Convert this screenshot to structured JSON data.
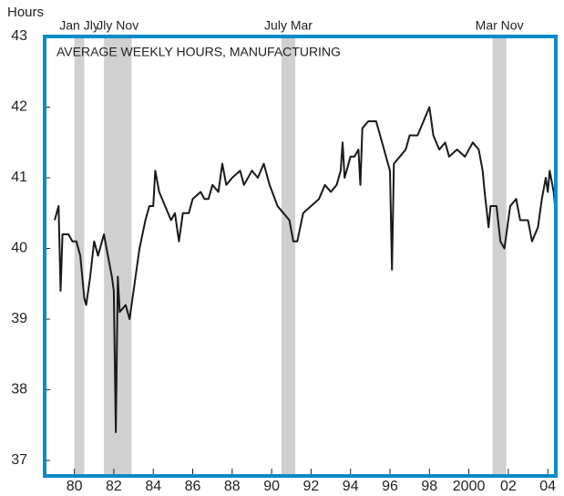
{
  "chart_data": {
    "type": "line",
    "title": "AVERAGE WEEKLY HOURS, MANUFACTURING",
    "y_label": "Hours",
    "color": "#1a1a1a",
    "frame_color": "#0a8bc9",
    "shade_color": "#d0d0d0",
    "xlim": [
      1978.4,
      2004.5
    ],
    "ylim": [
      37,
      43
    ],
    "yticks": [
      37,
      38,
      39,
      40,
      41,
      42,
      43
    ],
    "xticks": [
      {
        "value": 1980,
        "label": "80"
      },
      {
        "value": 1982,
        "label": "82"
      },
      {
        "value": 1984,
        "label": "84"
      },
      {
        "value": 1986,
        "label": "86"
      },
      {
        "value": 1988,
        "label": "88"
      },
      {
        "value": 1990,
        "label": "90"
      },
      {
        "value": 1992,
        "label": "92"
      },
      {
        "value": 1994,
        "label": "94"
      },
      {
        "value": 1996,
        "label": "96"
      },
      {
        "value": 1998,
        "label": "98"
      },
      {
        "value": 2000,
        "label": "2000"
      },
      {
        "value": 2002,
        "label": "02"
      },
      {
        "value": 2004,
        "label": "04"
      }
    ],
    "recessions": [
      {
        "start": 1980.0,
        "end": 1980.5,
        "label": "Jan Jly"
      },
      {
        "start": 1981.5,
        "end": 1982.9,
        "label": "Jly Nov"
      },
      {
        "start": 1990.5,
        "end": 1991.2,
        "label": "July Mar"
      },
      {
        "start": 2001.2,
        "end": 2001.9,
        "label": "Mar Nov"
      }
    ],
    "x": [
      1979.0,
      1979.2,
      1979.3,
      1979.4,
      1979.7,
      1979.9,
      1980.1,
      1980.3,
      1980.5,
      1980.6,
      1980.8,
      1981.0,
      1981.2,
      1981.5,
      1981.7,
      1981.9,
      1982.0,
      1982.1,
      1982.2,
      1982.3,
      1982.6,
      1982.8,
      1983.0,
      1983.3,
      1983.6,
      1983.8,
      1984.0,
      1984.1,
      1984.3,
      1984.6,
      1984.9,
      1985.1,
      1985.3,
      1985.5,
      1985.8,
      1986.0,
      1986.4,
      1986.6,
      1986.8,
      1987.0,
      1987.3,
      1987.5,
      1987.7,
      1988.0,
      1988.4,
      1988.6,
      1989.0,
      1989.3,
      1989.6,
      1989.9,
      1990.3,
      1990.6,
      1990.9,
      1991.1,
      1991.3,
      1991.6,
      1992.0,
      1992.4,
      1992.7,
      1993.0,
      1993.3,
      1993.5,
      1993.6,
      1993.7,
      1994.0,
      1994.2,
      1994.4,
      1994.5,
      1994.6,
      1994.9,
      1995.3,
      1995.5,
      1995.9,
      1996.0,
      1996.1,
      1996.2,
      1996.5,
      1996.8,
      1997.0,
      1997.4,
      1997.7,
      1998.0,
      1998.2,
      1998.5,
      1998.8,
      1999.0,
      1999.4,
      1999.8,
      2000.2,
      2000.5,
      2000.7,
      2000.8,
      2001.0,
      2001.1,
      2001.4,
      2001.6,
      2001.8,
      2002.1,
      2002.4,
      2002.6,
      2003.0,
      2003.2,
      2003.5,
      2003.7,
      2003.9,
      2004.0,
      2004.1,
      2004.3,
      2004.4
    ],
    "values": [
      40.4,
      40.6,
      39.4,
      40.2,
      40.2,
      40.1,
      40.1,
      39.9,
      39.3,
      39.2,
      39.6,
      40.1,
      39.9,
      40.2,
      39.9,
      39.6,
      39.4,
      37.4,
      39.6,
      39.1,
      39.2,
      39.0,
      39.4,
      40.0,
      40.4,
      40.6,
      40.6,
      41.1,
      40.8,
      40.6,
      40.4,
      40.5,
      40.1,
      40.5,
      40.5,
      40.7,
      40.8,
      40.7,
      40.7,
      40.9,
      40.8,
      41.2,
      40.9,
      41.0,
      41.1,
      40.9,
      41.1,
      41.0,
      41.2,
      40.9,
      40.6,
      40.5,
      40.4,
      40.1,
      40.1,
      40.5,
      40.6,
      40.7,
      40.9,
      40.8,
      40.9,
      41.1,
      41.5,
      41.0,
      41.3,
      41.3,
      41.4,
      40.9,
      41.7,
      41.8,
      41.8,
      41.6,
      41.2,
      41.1,
      39.7,
      41.2,
      41.3,
      41.4,
      41.6,
      41.6,
      41.8,
      42.0,
      41.6,
      41.4,
      41.5,
      41.3,
      41.4,
      41.3,
      41.5,
      41.4,
      41.1,
      40.8,
      40.3,
      40.6,
      40.6,
      40.1,
      40.0,
      40.6,
      40.7,
      40.4,
      40.4,
      40.1,
      40.3,
      40.7,
      41.0,
      40.8,
      41.1,
      40.8,
      40.5
    ]
  }
}
